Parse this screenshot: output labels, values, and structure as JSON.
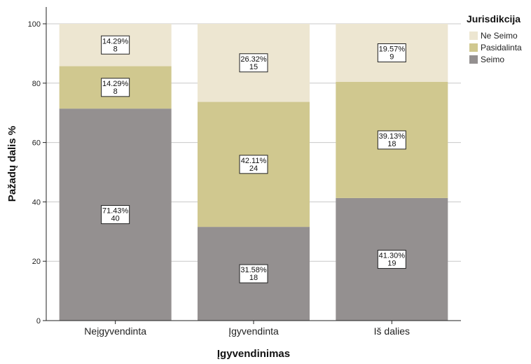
{
  "chart_data": {
    "type": "bar",
    "stacked": true,
    "categories": [
      "Neįgyvendinta",
      "Įgyvendinta",
      "Iš dalies"
    ],
    "series": [
      {
        "name": "Seimo",
        "values": [
          71.43,
          31.58,
          41.3
        ],
        "counts": [
          "40",
          "18",
          "19"
        ],
        "labels": [
          "71.43%",
          "31.58%",
          "41.30%"
        ],
        "color": "#949090"
      },
      {
        "name": "Pasidalinta",
        "values": [
          14.29,
          42.11,
          39.13
        ],
        "counts": [
          "8",
          "24",
          "18"
        ],
        "labels": [
          "14.29%",
          "42.11%",
          "39.13%"
        ],
        "color": "#d0c88f"
      },
      {
        "name": "Ne Seimo",
        "values": [
          14.29,
          26.32,
          19.57
        ],
        "counts": [
          "8",
          "15",
          "9"
        ],
        "labels": [
          "14.29%",
          "26.32%",
          "19.57%"
        ],
        "color": "#ede6d1"
      }
    ],
    "legend_order": [
      "Ne Seimo",
      "Pasidalinta",
      "Seimo"
    ],
    "legend_title": "Jurisdikcija",
    "legend_position": "right",
    "xlabel": "Įgyvendinimas",
    "ylabel": "Pažadų dalis %",
    "ylim": [
      0,
      100
    ],
    "yticks": [
      "0",
      "20",
      "40",
      "60",
      "80",
      "100"
    ],
    "grid": true
  }
}
